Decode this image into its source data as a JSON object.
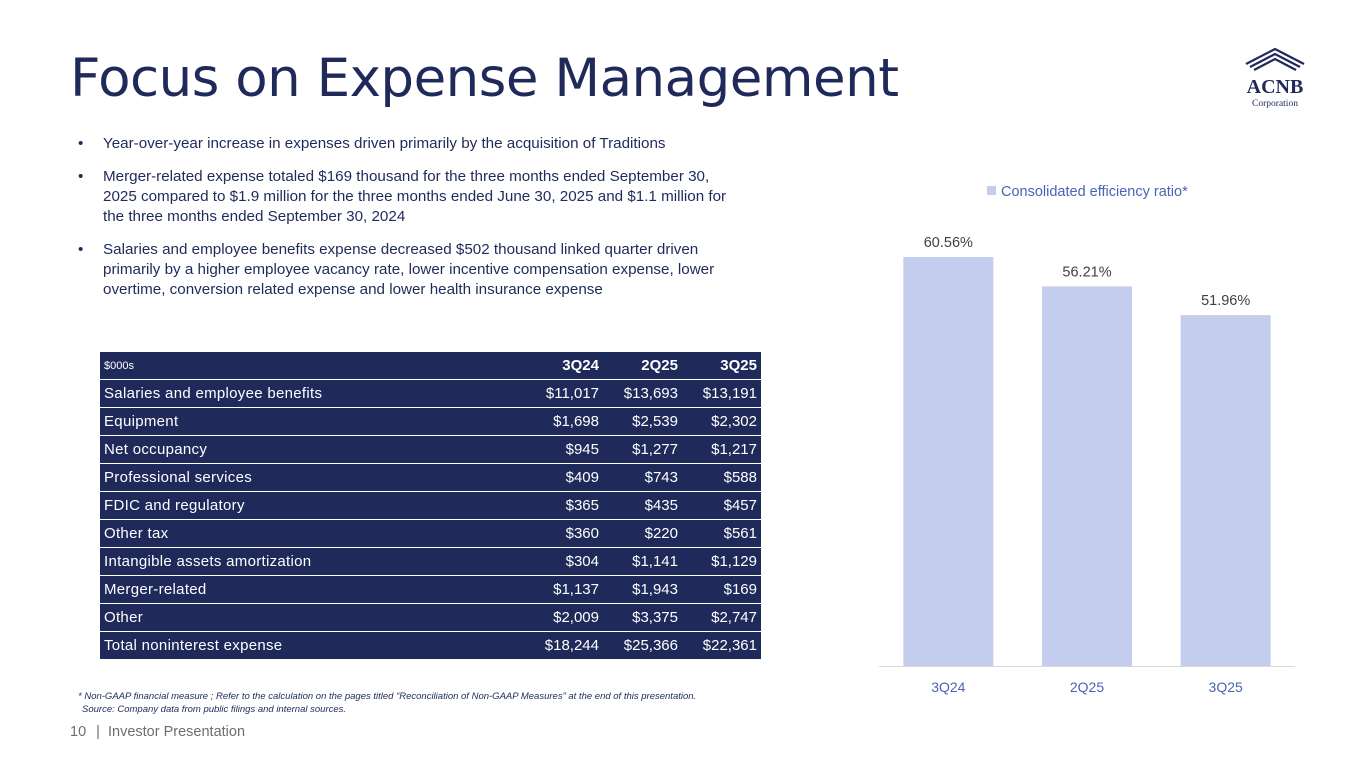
{
  "slide": {
    "title": "Focus on Expense Management",
    "page_number": "10",
    "footer_separator": "|",
    "footer_label": "Investor Presentation"
  },
  "logo": {
    "name": "ACNB",
    "subtitle": "Corporation"
  },
  "bullets": [
    "Year-over-year increase in expenses driven primarily by the acquisition of Traditions",
    "Merger-related expense totaled $169 thousand  for the three months ended September 30, 2025 compared to $1.9 million for the three months ended June 30, 2025 and $1.1 million for the three months ended September 30, 2024",
    "Salaries and employee benefits expense decreased $502 thousand linked quarter driven primarily by a higher employee vacancy rate, lower incentive compensation expense, lower overtime, conversion related expense and lower health insurance expense"
  ],
  "table": {
    "headers": [
      "$000s",
      "3Q24",
      "2Q25",
      "3Q25"
    ],
    "rows": [
      [
        "Salaries and employee benefits",
        "$11,017",
        "$13,693",
        "$13,191"
      ],
      [
        "Equipment",
        "$1,698",
        "$2,539",
        "$2,302"
      ],
      [
        "Net occupancy",
        "$945",
        "$1,277",
        "$1,217"
      ],
      [
        "Professional services",
        "$409",
        "$743",
        "$588"
      ],
      [
        "FDIC and regulatory",
        "$365",
        "$435",
        "$457"
      ],
      [
        "Other tax",
        "$360",
        "$220",
        "$561"
      ],
      [
        "Intangible assets amortization",
        "$304",
        "$1,141",
        "$1,129"
      ],
      [
        "Merger-related",
        "$1,137",
        "$1,943",
        "$169"
      ],
      [
        "Other",
        "$2,009",
        "$3,375",
        "$2,747"
      ],
      [
        "Total noninterest expense",
        "$18,244",
        "$25,366",
        "$22,361"
      ]
    ]
  },
  "footnote": {
    "line1": "* Non-GAAP financial measure ; Refer to the calculation on the pages titled “Reconciliation of Non-GAAP Measures” at the end of this presentation.",
    "line2": "Source: Company data from public filings and internal sources."
  },
  "colors": {
    "navy": "#1f2a5a",
    "bar": "#c5cdee",
    "legend_text": "#4a63b8",
    "axis_line": "#d9d9d9",
    "label_text": "#404040"
  },
  "chart_data": {
    "type": "bar",
    "title": "",
    "categories": [
      "3Q24",
      "2Q25",
      "3Q25"
    ],
    "series": [
      {
        "name": "Consolidated efficiency ratio*",
        "values": [
          60.56,
          56.21,
          51.96
        ]
      }
    ],
    "data_labels": [
      "60.56%",
      "56.21%",
      "51.96%"
    ],
    "ylim": [
      0,
      60.56
    ],
    "xlabel": "",
    "ylabel": "",
    "grid": false,
    "legend": "top"
  }
}
